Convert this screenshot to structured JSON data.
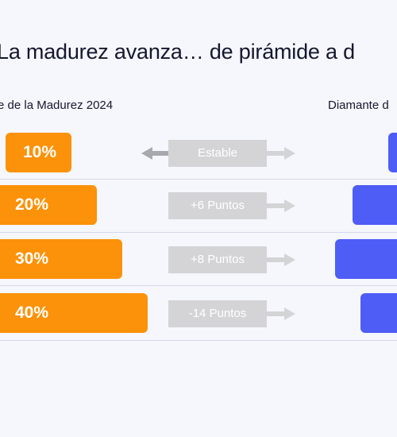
{
  "colors": {
    "left": "#fb9209",
    "right": "#4e5df5",
    "neutral": "#d4d4d7"
  },
  "chart_data": {
    "type": "bar",
    "title": "La madurez avanza… de pirámide a d",
    "left_series": "e de la Madurez 2024",
    "right_series": "Diamante d",
    "rows": [
      {
        "left_label": "10%",
        "left_value": 10,
        "change": "Estable",
        "direction": "both"
      },
      {
        "left_label": "20%",
        "left_value": 20,
        "change": "+6 Puntos",
        "direction": "right"
      },
      {
        "left_label": "30%",
        "left_value": 30,
        "change": "+8 Puntos",
        "direction": "right"
      },
      {
        "left_label": "40%",
        "left_value": 40,
        "change": "-14 Puntos",
        "direction": "right"
      }
    ]
  }
}
